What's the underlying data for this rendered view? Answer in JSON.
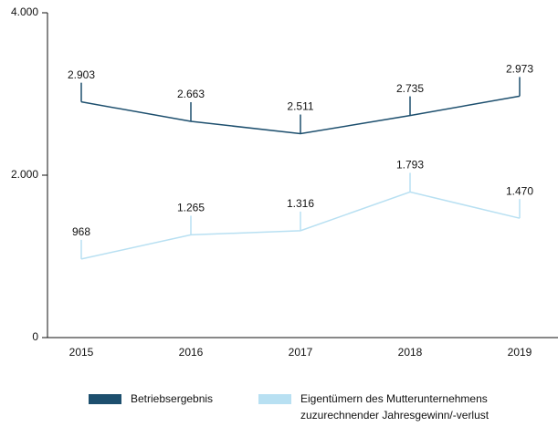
{
  "chart_data": {
    "type": "line",
    "categories": [
      "2015",
      "2016",
      "2017",
      "2018",
      "2019"
    ],
    "series": [
      {
        "name": "Betriebsergebnis",
        "color": "#1d4f6e",
        "values": [
          2903,
          2663,
          2511,
          2735,
          2973
        ],
        "value_labels": [
          "2.903",
          "2.663",
          "2.511",
          "2.735",
          "2.973"
        ]
      },
      {
        "name": "Eigentümern des Mutterunternehmens zuzurechnender Jahresgewinn/-verlust",
        "color": "#b8e0f2",
        "values": [
          968,
          1265,
          1316,
          1793,
          1470
        ],
        "value_labels": [
          "968",
          "1.265",
          "1.316",
          "1.793",
          "1.470"
        ]
      }
    ],
    "ylim": [
      0,
      4000
    ],
    "yticks": [
      0,
      {
        "value": 2000,
        "label": "2.000"
      },
      {
        "value": 4000,
        "label": "4.000"
      }
    ],
    "grid": false,
    "legend": "bottom"
  }
}
